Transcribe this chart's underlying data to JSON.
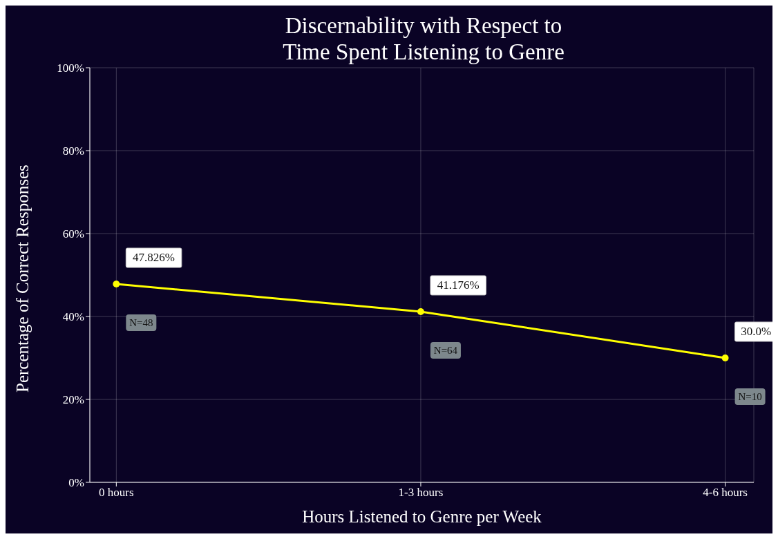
{
  "chart_data": {
    "type": "line",
    "title": "Discernability with Respect to\nTime Spent Listening to Genre",
    "xlabel": "Hours Listened to Genre per Week",
    "ylabel": "Percentage of Correct Responses",
    "categories": [
      "0 hours",
      "1-3 hours",
      "4-6 hours"
    ],
    "series": [
      {
        "color": "#ffff00",
        "values": [
          47.826,
          41.176,
          30.0
        ],
        "value_labels": [
          "47.826%",
          "41.176%",
          "30.0%"
        ]
      }
    ],
    "ylim": [
      0,
      100
    ],
    "yticks": [
      {
        "value": 0,
        "label": "0%"
      },
      {
        "value": 20,
        "label": "20%"
      },
      {
        "value": 40,
        "label": "40%"
      },
      {
        "value": 60,
        "label": "60%"
      },
      {
        "value": 80,
        "label": "80%"
      },
      {
        "value": 100,
        "label": "100%"
      }
    ],
    "grid": true,
    "marker": "circle",
    "line_style": "solid",
    "annotations": [
      "N=48",
      "N=64",
      "N=10"
    ]
  }
}
